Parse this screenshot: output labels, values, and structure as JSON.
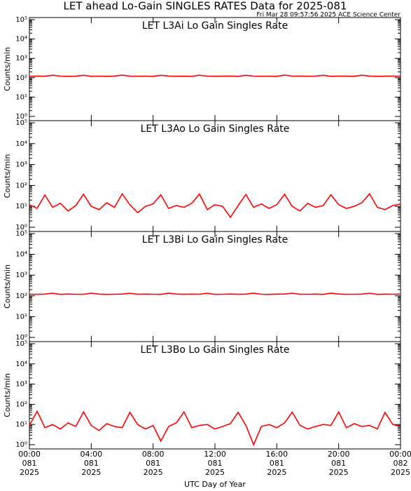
{
  "header": {
    "title": "LET ahead Lo-Gain SINGLES RATES Data for 2025-081",
    "subtitle": "Fri Mar 28 09:57:56 2025 ACE Science Center"
  },
  "chart_data": [
    {
      "type": "line",
      "title": "LET L3Ai Lo Gain Singles Rate",
      "title_color": "#0000ff",
      "ylabel": "Counts/min",
      "color": "#ff0000",
      "log_y": true,
      "xlim": [
        0,
        24
      ],
      "ylim": [
        1,
        100000
      ],
      "yticks": [
        {
          "value": 1,
          "label": "10⁰"
        },
        {
          "value": 10,
          "label": "10¹"
        },
        {
          "value": 100,
          "label": "10²"
        },
        {
          "value": 1000,
          "label": "10³"
        },
        {
          "value": 10000,
          "label": "10⁴"
        },
        {
          "value": 100000,
          "label": "10⁵"
        }
      ],
      "x": [
        0,
        0.5,
        1,
        1.5,
        2,
        2.5,
        3,
        3.5,
        4,
        4.5,
        5,
        5.5,
        6,
        6.5,
        7,
        7.5,
        8,
        8.5,
        9,
        9.5,
        10,
        10.5,
        11,
        11.5,
        12,
        12.5,
        13,
        13.5,
        14,
        14.5,
        15,
        15.5,
        16,
        16.5,
        17,
        17.5,
        18,
        18.5,
        19,
        19.5,
        20,
        20.5,
        21,
        21.5,
        22,
        22.5,
        23,
        23.5,
        24
      ],
      "values": [
        118,
        122,
        119,
        135,
        121,
        118,
        120,
        134,
        119,
        121,
        118,
        122,
        136,
        120,
        119,
        121,
        118,
        134,
        122,
        119,
        120,
        118,
        135,
        121,
        119,
        120,
        122,
        118,
        134,
        121,
        119,
        120,
        118,
        136,
        121,
        122,
        119,
        120,
        134,
        118,
        121,
        120,
        119,
        135,
        122,
        118,
        120,
        121,
        119
      ]
    },
    {
      "type": "line",
      "title": "LET L3Ao Lo Gain Singles Rate",
      "title_color": "#0000ff",
      "ylabel": "Counts/min",
      "color": "#ff0000",
      "log_y": true,
      "xlim": [
        0,
        24
      ],
      "ylim": [
        1,
        100000
      ],
      "yticks": [
        {
          "value": 1,
          "label": "10⁰"
        },
        {
          "value": 10,
          "label": "10¹"
        },
        {
          "value": 100,
          "label": "10²"
        },
        {
          "value": 1000,
          "label": "10³"
        },
        {
          "value": 10000,
          "label": "10⁴"
        },
        {
          "value": 100000,
          "label": "10⁵"
        }
      ],
      "x": [
        0,
        0.5,
        1,
        1.5,
        2,
        2.5,
        3,
        3.5,
        4,
        4.5,
        5,
        5.5,
        6,
        6.5,
        7,
        7.5,
        8,
        8.5,
        9,
        9.5,
        10,
        10.5,
        11,
        11.5,
        12,
        12.5,
        13,
        13.5,
        14,
        14.5,
        15,
        15.5,
        16,
        16.5,
        17,
        17.5,
        18,
        18.5,
        19,
        19.5,
        20,
        20.5,
        21,
        21.5,
        22,
        22.5,
        23,
        23.5,
        24
      ],
      "values": [
        12,
        8,
        35,
        9,
        14,
        6,
        11,
        38,
        10,
        7,
        15,
        9,
        40,
        12,
        5,
        10,
        13,
        36,
        8,
        11,
        9,
        14,
        39,
        7,
        12,
        10,
        3,
        11,
        37,
        9,
        13,
        8,
        12,
        38,
        10,
        6,
        14,
        9,
        11,
        36,
        12,
        8,
        10,
        15,
        40,
        9,
        7,
        11,
        13
      ]
    },
    {
      "type": "line",
      "title": "LET L3Bi Lo Gain Singles Rate",
      "title_color": "#0000ff",
      "ylabel": "Counts/min",
      "color": "#ff0000",
      "log_y": true,
      "xlim": [
        0,
        24
      ],
      "ylim": [
        1,
        100000
      ],
      "yticks": [
        {
          "value": 1,
          "label": "10⁰"
        },
        {
          "value": 10,
          "label": "10¹"
        },
        {
          "value": 100,
          "label": "10²"
        },
        {
          "value": 1000,
          "label": "10³"
        },
        {
          "value": 10000,
          "label": "10⁴"
        },
        {
          "value": 100000,
          "label": "10⁵"
        }
      ],
      "x": [
        0,
        0.5,
        1,
        1.5,
        2,
        2.5,
        3,
        3.5,
        4,
        4.5,
        5,
        5.5,
        6,
        6.5,
        7,
        7.5,
        8,
        8.5,
        9,
        9.5,
        10,
        10.5,
        11,
        11.5,
        12,
        12.5,
        13,
        13.5,
        14,
        14.5,
        15,
        15.5,
        16,
        16.5,
        17,
        17.5,
        18,
        18.5,
        19,
        19.5,
        20,
        20.5,
        21,
        21.5,
        22,
        22.5,
        23,
        23.5,
        24
      ],
      "values": [
        120,
        119,
        121,
        134,
        118,
        122,
        120,
        119,
        135,
        121,
        118,
        120,
        122,
        134,
        119,
        121,
        120,
        118,
        135,
        122,
        119,
        121,
        120,
        134,
        118,
        120,
        122,
        119,
        121,
        135,
        120,
        118,
        121,
        122,
        134,
        119,
        120,
        121,
        118,
        135,
        122,
        119,
        120,
        121,
        134,
        118,
        121,
        120,
        122
      ]
    },
    {
      "type": "line",
      "title": "LET L3Bo Lo Gain Singles Rate",
      "title_color": "#0000ff",
      "ylabel": "Counts/min",
      "color": "#ff0000",
      "log_y": true,
      "xlim": [
        0,
        24
      ],
      "ylim": [
        1,
        100000
      ],
      "yticks": [
        {
          "value": 1,
          "label": "10⁰"
        },
        {
          "value": 10,
          "label": "10¹"
        },
        {
          "value": 100,
          "label": "10²"
        },
        {
          "value": 1000,
          "label": "10³"
        },
        {
          "value": 10000,
          "label": "10⁴"
        },
        {
          "value": 100000,
          "label": "10⁵"
        }
      ],
      "x": [
        0,
        0.5,
        1,
        1.5,
        2,
        2.5,
        3,
        3.5,
        4,
        4.5,
        5,
        5.5,
        6,
        6.5,
        7,
        7.5,
        8,
        8.5,
        9,
        9.5,
        10,
        10.5,
        11,
        11.5,
        12,
        12.5,
        13,
        13.5,
        14,
        14.5,
        15,
        15.5,
        16,
        16.5,
        17,
        17.5,
        18,
        18.5,
        19,
        19.5,
        20,
        20.5,
        21,
        21.5,
        22,
        22.5,
        23,
        23.5,
        24
      ],
      "values": [
        9,
        45,
        7,
        10,
        6,
        12,
        8,
        42,
        9,
        5,
        11,
        8,
        7,
        40,
        10,
        6,
        9,
        1.5,
        8,
        12,
        42,
        7,
        9,
        10,
        6,
        8,
        11,
        40,
        9,
        1,
        8,
        10,
        7,
        12,
        41,
        9,
        6,
        8,
        10,
        9,
        42,
        7,
        11,
        8,
        9,
        6,
        40,
        10,
        8
      ],
      "xlabel": "UTC Day of Year",
      "xticks": [
        {
          "value": 0,
          "label": [
            "00:00",
            "081",
            "2025"
          ]
        },
        {
          "value": 4,
          "label": [
            "04:00",
            "081",
            "2025"
          ]
        },
        {
          "value": 8,
          "label": [
            "08:00",
            "081",
            "2025"
          ]
        },
        {
          "value": 12,
          "label": [
            "12:00",
            "081",
            "2025"
          ]
        },
        {
          "value": 16,
          "label": [
            "16:00",
            "081",
            "2025"
          ]
        },
        {
          "value": 20,
          "label": [
            "20:00",
            "081",
            "2025"
          ]
        },
        {
          "value": 24,
          "label": [
            "00:00",
            "082",
            "2025"
          ]
        }
      ]
    }
  ]
}
